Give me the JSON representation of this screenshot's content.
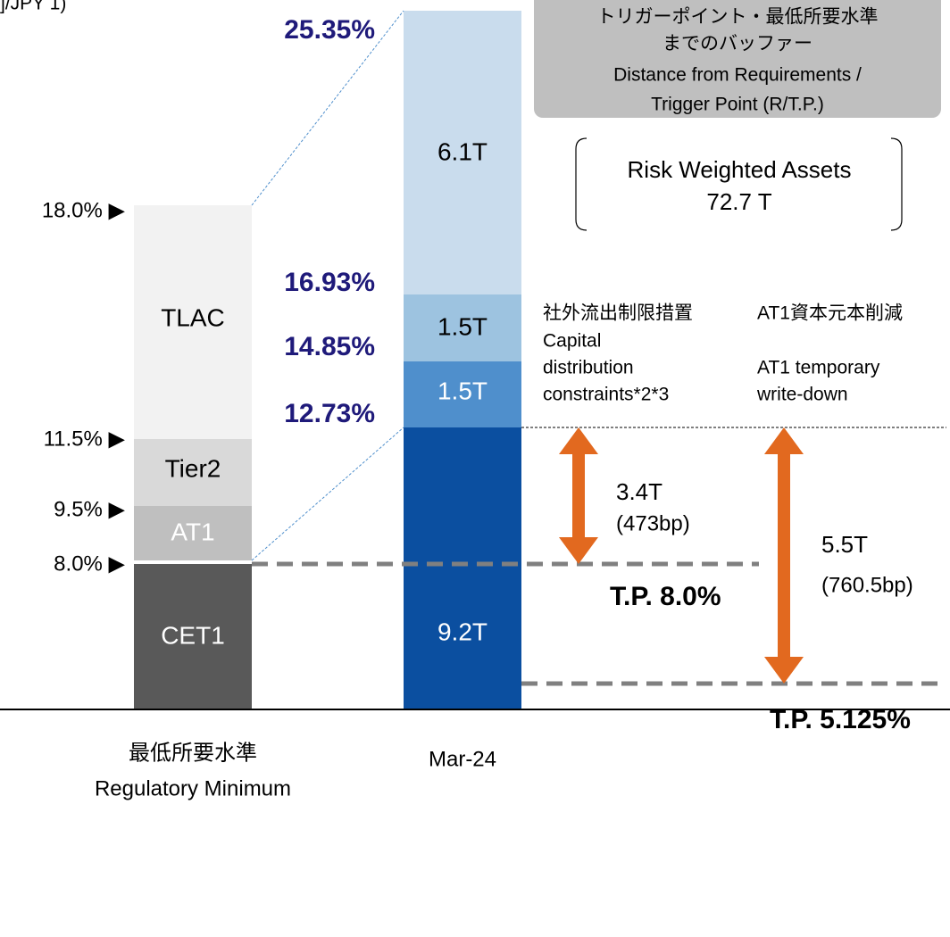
{
  "unit_note": "]/JPY 1)",
  "minimum": {
    "category": [
      "最低所要水準",
      "Regulatory Minimum"
    ],
    "segments": [
      "TLAC",
      "Tier2",
      "AT1",
      "CET1"
    ],
    "levels": [
      "18.0% ▶",
      "11.5% ▶",
      "9.5% ▶",
      "8.0% ▶"
    ]
  },
  "actual": {
    "category": "Mar-24",
    "segments": [
      "6.1T",
      "1.5T",
      "1.5T",
      "9.2T"
    ],
    "ratios": [
      "25.35%",
      "16.93%",
      "14.85%",
      "12.73%"
    ]
  },
  "buffer_box": [
    "トリガーポイント・最低所要水準",
    "までのバッファー",
    "Distance from Requirements /",
    "Trigger Point (R/T.P.)"
  ],
  "rwa": [
    "Risk Weighted Assets",
    "72.7 T"
  ],
  "distribution": {
    "lines": [
      "社外流出制限措置",
      "Capital",
      "distribution",
      "constraints*2*3"
    ],
    "amount": "3.4T",
    "bp": "(473bp)",
    "tp": "T.P. 8.0%"
  },
  "writedown": {
    "lines": [
      "AT1資本元本削減",
      "AT1 temporary",
      "write-down"
    ],
    "amount": "5.5T",
    "bp": "(760.5bp)",
    "tp": "T.P. 5.125%"
  }
}
